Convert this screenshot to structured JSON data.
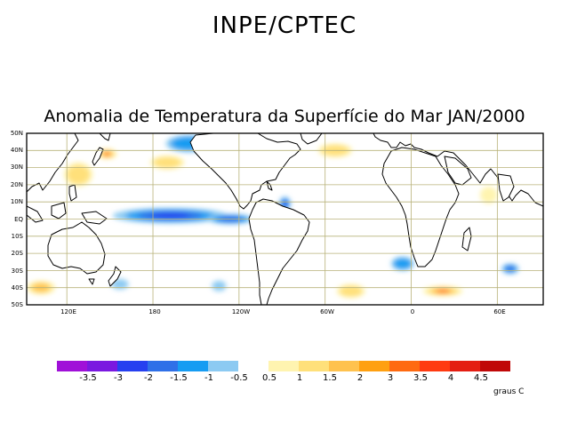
{
  "header": {
    "title": "INPE/CPTEC",
    "subtitle": "Anomalia de Temperatura da Superfície do Mar JAN/2000"
  },
  "map": {
    "lat_labels": [
      "50N",
      "40N",
      "30N",
      "20N",
      "10N",
      "EQ",
      "10S",
      "20S",
      "30S",
      "40S",
      "50S"
    ],
    "lon_labels": [
      "120E",
      "180",
      "120W",
      "60W",
      "0",
      "60E"
    ],
    "land_color": "#ffffff",
    "grid_color": "#b8b27a"
  },
  "colorbar": {
    "labels": [
      "-3.5",
      "-3",
      "-2",
      "-1.5",
      "-1",
      "-0.5",
      "0.5",
      "1",
      "1.5",
      "2",
      "3",
      "3.5",
      "4",
      "4.5"
    ],
    "colors": [
      "#a010d8",
      "#7a18e0",
      "#2640f0",
      "#2f70e8",
      "#169cf2",
      "#8ccaf2",
      "#ffffff",
      "#fff4b0",
      "#ffe07a",
      "#ffc24e",
      "#ffa010",
      "#ff6a10",
      "#ff3a10",
      "#e41e12",
      "#c00808"
    ],
    "units": "graus C"
  },
  "anomalies": {
    "cold": [
      {
        "region": "central equatorial Pacific",
        "lon": 192,
        "lat": 2,
        "rlon": 40,
        "rlat": 4.5,
        "level": 3
      },
      {
        "region": "eastern equatorial Pacific",
        "lon": 234,
        "lat": 0,
        "rlon": 16,
        "rlat": 3,
        "level": 2
      },
      {
        "region": "Gulf of Panama",
        "lon": 272,
        "lat": 9,
        "rlon": 4,
        "rlat": 4,
        "level": 3
      },
      {
        "region": "north central Pacific",
        "lon": 205,
        "lat": 44,
        "rlon": 16,
        "rlat": 5,
        "level": 1
      },
      {
        "region": "South Atlantic",
        "lon": 354,
        "lat": -26,
        "rlon": 8,
        "rlat": 4,
        "level": 1
      },
      {
        "region": "south Indian Ocean",
        "lon": 429,
        "lat": -29,
        "rlon": 6,
        "rlat": 3,
        "level": 2
      },
      {
        "region": "Tasman Sea",
        "lon": 157,
        "lat": -38,
        "rlon": 6,
        "rlat": 3,
        "level": 0
      },
      {
        "region": "South Pacific",
        "lon": 226,
        "lat": -39,
        "rlon": 5,
        "rlat": 3,
        "level": 0
      }
    ],
    "warm": [
      {
        "region": "Kuroshio",
        "lon": 148,
        "lat": 38,
        "rlon": 7,
        "rlat": 3,
        "level": 3
      },
      {
        "region": "west Pacific",
        "lon": 128,
        "lat": 26,
        "rlon": 10,
        "rlat": 7,
        "level": 1
      },
      {
        "region": "North Pacific",
        "lon": 190,
        "lat": 33,
        "rlon": 12,
        "rlat": 4,
        "level": 1
      },
      {
        "region": "northwest Atlantic",
        "lon": 307,
        "lat": 40,
        "rlon": 12,
        "rlat": 4,
        "level": 1
      },
      {
        "region": "Australia south",
        "lon": 102,
        "lat": -40,
        "rlon": 10,
        "rlat": 4,
        "level": 2
      },
      {
        "region": "South Atlantic",
        "lon": 318,
        "lat": -42,
        "rlon": 10,
        "rlat": 4,
        "level": 1
      },
      {
        "region": "Agulhas",
        "lon": 382,
        "lat": -42,
        "rlon": 14,
        "rlat": 3,
        "level": 3
      },
      {
        "region": "Arabian Sea",
        "lon": 414,
        "lat": 14,
        "rlon": 6,
        "rlat": 5,
        "level": 0
      }
    ]
  }
}
